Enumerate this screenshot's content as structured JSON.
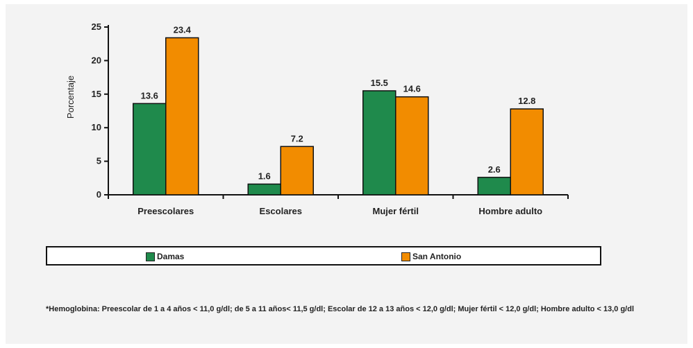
{
  "chart_data": {
    "type": "bar",
    "title": "",
    "xlabel": "",
    "ylabel": "Porcentaje",
    "ylim": [
      0,
      25
    ],
    "yticks": [
      0,
      5,
      10,
      15,
      20,
      25
    ],
    "categories": [
      "Preescolares",
      "Escolares",
      "Mujer fértil",
      "Hombre adulto"
    ],
    "series": [
      {
        "name": "Damas",
        "color": "#1f8a4c",
        "values": [
          13.6,
          1.6,
          15.5,
          2.6
        ],
        "labels": [
          "13.6",
          "1.6",
          "15.5",
          "2.6"
        ]
      },
      {
        "name": "San Antonio",
        "color": "#f28c00",
        "values": [
          23.4,
          7.2,
          14.6,
          12.8
        ],
        "labels": [
          "23.4",
          "7.2",
          "14.6",
          "12.8"
        ]
      }
    ],
    "legend_position": "bottom",
    "grid": false
  },
  "footnote": "*Hemoglobina: Preescolar de 1 a 4 años < 11,0 g/dl; de 5 a 11 años< 11,5 g/dl; Escolar de 12 a 13 años < 12,0 g/dl; Mujer fértil < 12,0 g/dl; Hombre adulto < 13,0 g/dl"
}
